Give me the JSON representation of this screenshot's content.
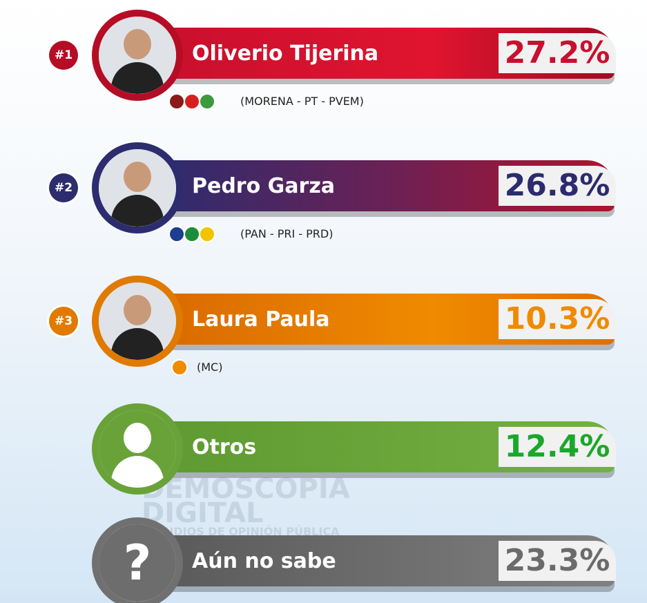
{
  "watermark": {
    "line1": "DEMOSCOPIA",
    "line2": "DIGITAL",
    "line3": "ESTUDIOS DE OPINIÓN PÚBLICA"
  },
  "rows": [
    {
      "rank": "#1",
      "name": "Oliverio Tijerina",
      "percent": "27.2%",
      "coalition": "(MORENA - PT - PVEM)"
    },
    {
      "rank": "#2",
      "name": "Pedro Garza",
      "percent": "26.8%",
      "coalition": "(PAN - PRI - PRD)"
    },
    {
      "rank": "#3",
      "name": "Laura Paula",
      "percent": "10.3%",
      "coalition": "(MC)"
    },
    {
      "name": "Otros",
      "percent": "12.4%"
    },
    {
      "icon": "?",
      "name": "Aún no sabe",
      "percent": "23.3%"
    }
  ]
}
